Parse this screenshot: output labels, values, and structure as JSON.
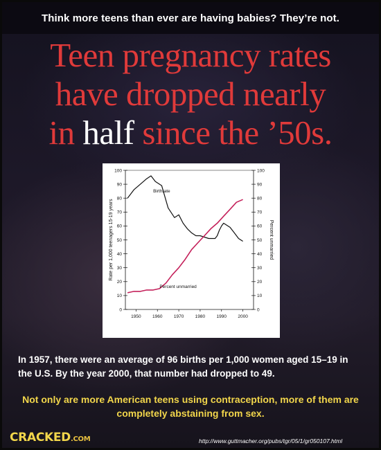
{
  "header": {
    "tagline": "Think more teens than ever are having babies? They’re not.",
    "title_parts": [
      {
        "text": "Teen pregnancy rates",
        "color": "#e03a3a"
      },
      {
        "text": "have dropped nearly",
        "color": "#e03a3a"
      },
      {
        "text": "in ",
        "color": "#e03a3a"
      },
      {
        "text": "half",
        "color": "#ffffff"
      },
      {
        "text": " since the ’50s.",
        "color": "#e03a3a"
      }
    ]
  },
  "chart_data": {
    "type": "line",
    "xlabel": "",
    "ylabel": "Rate per 1,000 teenagers 15-19 years",
    "y2label": "Percent unmarried",
    "xlim": [
      1945,
      2005
    ],
    "ylim": [
      0,
      100
    ],
    "y2lim": [
      0,
      100
    ],
    "x_ticks": [
      1950,
      1960,
      1970,
      1980,
      1990,
      2000
    ],
    "y_ticks": [
      0,
      10,
      20,
      30,
      40,
      50,
      60,
      70,
      80,
      90,
      100
    ],
    "grid": false,
    "series": [
      {
        "name": "Birthrate",
        "axis": "left",
        "color": "#111111",
        "x": [
          1946,
          1949,
          1952,
          1955,
          1957,
          1959,
          1962,
          1965,
          1968,
          1970,
          1972,
          1974,
          1976,
          1978,
          1980,
          1982,
          1984,
          1986,
          1987,
          1988,
          1989,
          1990,
          1991,
          1992,
          1994,
          1996,
          1998,
          2000
        ],
        "values": [
          80,
          86,
          90,
          94,
          96,
          92,
          89,
          73,
          66,
          68,
          62,
          58,
          55,
          53,
          53,
          52,
          51,
          51,
          51,
          53,
          57,
          60,
          62,
          61,
          59,
          55,
          51,
          49
        ]
      },
      {
        "name": "Percent unmarried",
        "axis": "right",
        "color": "#c4205a",
        "x": [
          1946,
          1949,
          1952,
          1955,
          1958,
          1961,
          1964,
          1967,
          1970,
          1973,
          1976,
          1979,
          1982,
          1985,
          1988,
          1991,
          1994,
          1997,
          2000
        ],
        "values": [
          12,
          13,
          13,
          14,
          14,
          15,
          19,
          25,
          30,
          36,
          43,
          48,
          53,
          58,
          62,
          67,
          72,
          77,
          79
        ]
      }
    ]
  },
  "text": {
    "paragraph1": "In 1957, there were an average of 96 births per 1,000 women aged 15–19 in the U.S. By the year 2000, that number had dropped to 49.",
    "paragraph2": "Not only are more American teens using contraception, more of them are completely abstaining from sex."
  },
  "footer": {
    "logo_text": "CRACKED",
    "logo_suffix": ".COM",
    "source_url": "http://www.guttmacher.org/pubs/tgr/05/1/gr050107.html"
  }
}
